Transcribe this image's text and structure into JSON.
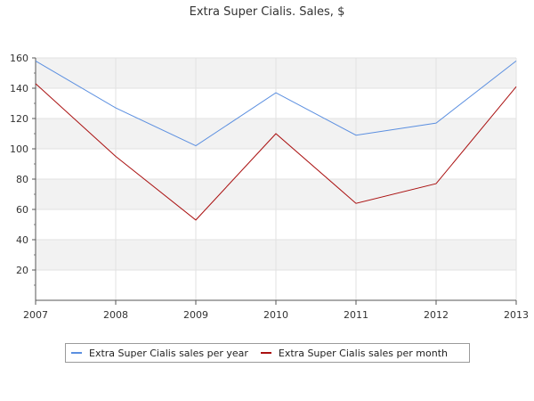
{
  "chart_data": {
    "type": "line",
    "title": "Extra Super Cialis. Sales, $",
    "xlabel": "",
    "ylabel": "",
    "x": [
      "2007",
      "2008",
      "2009",
      "2010",
      "2011",
      "2012",
      "2013"
    ],
    "ylim": [
      0,
      160
    ],
    "yticks": [
      20,
      40,
      60,
      80,
      100,
      120,
      140,
      160
    ],
    "grid": true,
    "legend_position": "bottom",
    "series": [
      {
        "name": "Extra Super Cialis sales per year",
        "color": "#5b8fe0",
        "values": [
          158,
          127,
          102,
          137,
          109,
          117,
          158
        ]
      },
      {
        "name": "Extra Super Cialis sales per month",
        "color": "#aa1111",
        "values": [
          143,
          95,
          53,
          110,
          64,
          77,
          141
        ]
      }
    ]
  }
}
